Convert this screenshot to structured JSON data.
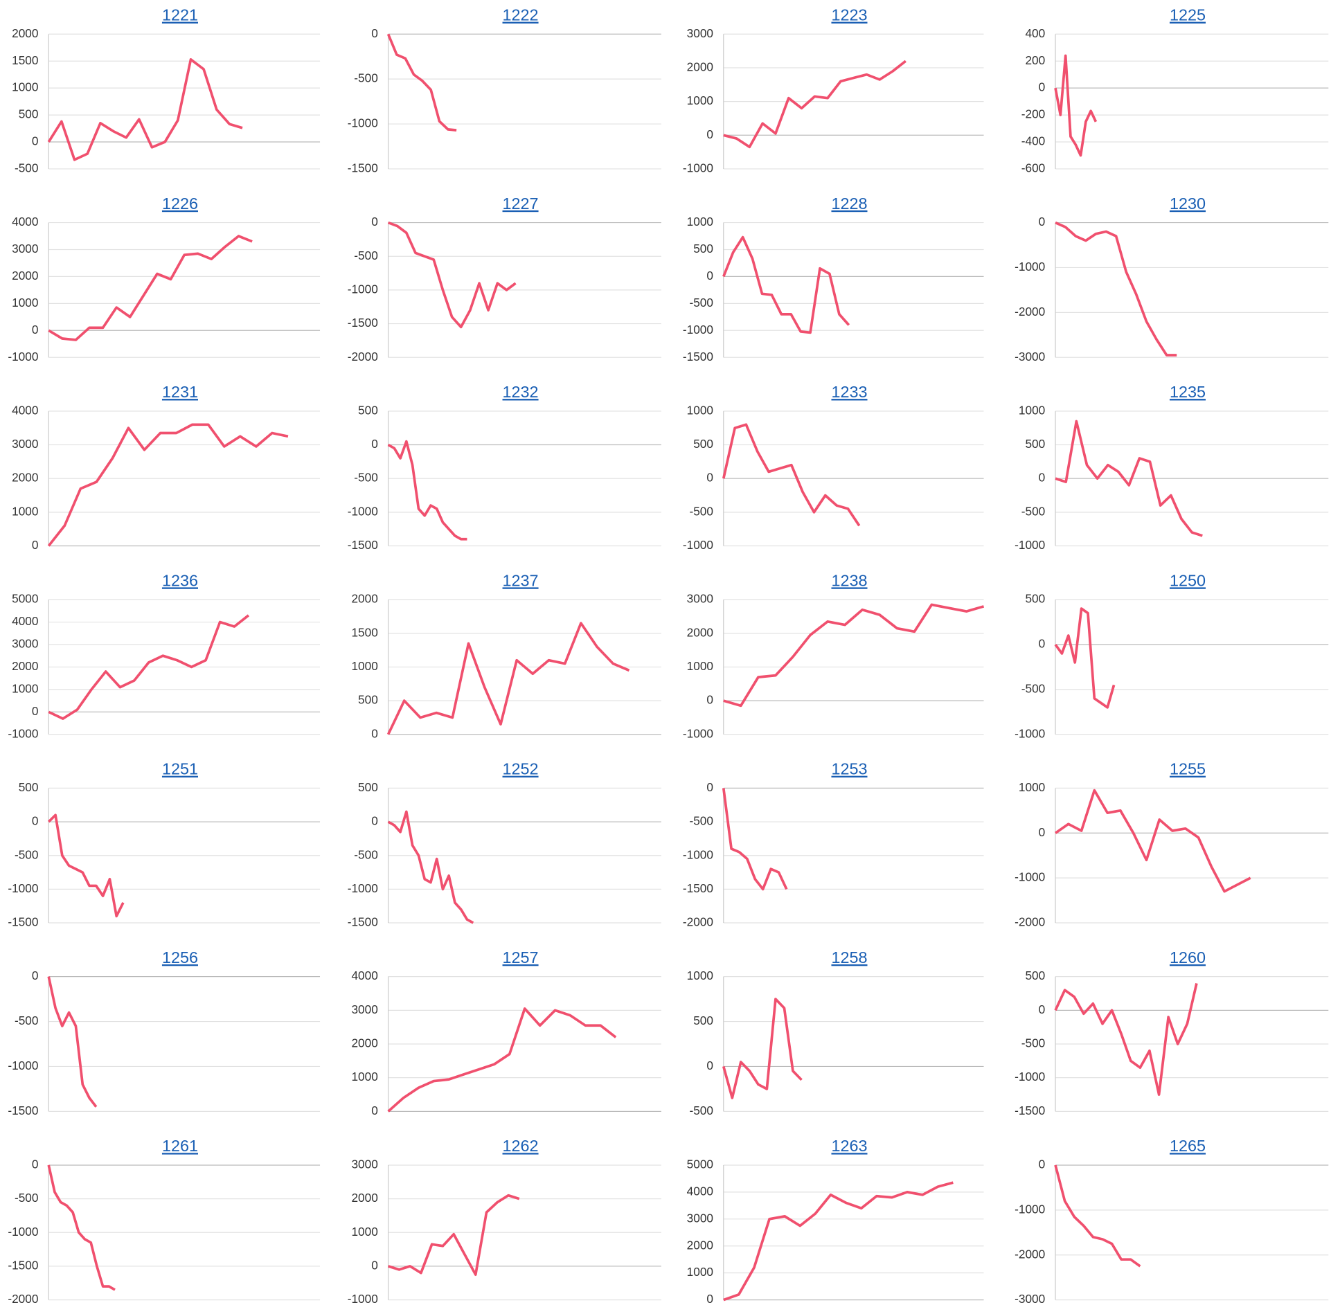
{
  "chart_data": [
    {
      "type": "line",
      "title": "1221",
      "color": "#f0506e",
      "ylim": [
        -500,
        2000
      ],
      "yticks": [
        -500,
        0,
        500,
        1000,
        1500,
        2000
      ],
      "values": [
        0,
        380,
        -330,
        -220,
        350,
        200,
        80,
        420,
        -100,
        0,
        400,
        1530,
        1350,
        600,
        330,
        260
      ]
    },
    {
      "type": "line",
      "title": "1222",
      "color": "#f0506e",
      "ylim": [
        -1500,
        0
      ],
      "yticks": [
        -1500,
        -1000,
        -500,
        0
      ],
      "values": [
        0,
        -230,
        -270,
        -450,
        -520,
        -620,
        -970,
        -1060,
        -1070
      ]
    },
    {
      "type": "line",
      "title": "1223",
      "color": "#f0506e",
      "ylim": [
        -1000,
        3000
      ],
      "yticks": [
        -1000,
        0,
        1000,
        2000,
        3000
      ],
      "values": [
        0,
        -100,
        -350,
        350,
        50,
        1100,
        800,
        1150,
        1100,
        1600,
        1700,
        1800,
        1650,
        1900,
        2200
      ]
    },
    {
      "type": "line",
      "title": "1225",
      "color": "#f0506e",
      "ylim": [
        -600,
        400
      ],
      "yticks": [
        -600,
        -400,
        -200,
        0,
        200,
        400
      ],
      "values": [
        0,
        -200,
        240,
        -360,
        -420,
        -500,
        -250,
        -170,
        -250
      ]
    },
    {
      "type": "line",
      "title": "1226",
      "color": "#f0506e",
      "ylim": [
        -1000,
        4000
      ],
      "yticks": [
        -1000,
        0,
        1000,
        2000,
        3000,
        4000
      ],
      "values": [
        0,
        -300,
        -350,
        100,
        100,
        850,
        500,
        1300,
        2100,
        1900,
        2800,
        2850,
        2650,
        3100,
        3500,
        3300
      ]
    },
    {
      "type": "line",
      "title": "1227",
      "color": "#f0506e",
      "ylim": [
        -2000,
        0
      ],
      "yticks": [
        -2000,
        -1500,
        -1000,
        -500,
        0
      ],
      "values": [
        0,
        -50,
        -150,
        -450,
        -500,
        -550,
        -1000,
        -1400,
        -1550,
        -1300,
        -900,
        -1300,
        -900,
        -1000,
        -900
      ]
    },
    {
      "type": "line",
      "title": "1228",
      "color": "#f0506e",
      "ylim": [
        -1500,
        1000
      ],
      "yticks": [
        -1500,
        -1000,
        -500,
        0,
        500,
        1000
      ],
      "values": [
        0,
        450,
        730,
        330,
        -320,
        -340,
        -700,
        -700,
        -1020,
        -1040,
        150,
        50,
        -700,
        -900
      ]
    },
    {
      "type": "line",
      "title": "1230",
      "color": "#f0506e",
      "ylim": [
        -3000,
        0
      ],
      "yticks": [
        -3000,
        -2000,
        -1000,
        0
      ],
      "values": [
        0,
        -100,
        -300,
        -400,
        -250,
        -200,
        -300,
        -1100,
        -1600,
        -2200,
        -2600,
        -2950,
        -2950
      ]
    },
    {
      "type": "line",
      "title": "1231",
      "color": "#f0506e",
      "ylim": [
        0,
        4000
      ],
      "yticks": [
        0,
        1000,
        2000,
        3000,
        4000
      ],
      "values": [
        0,
        600,
        1700,
        1900,
        2600,
        3500,
        2850,
        3350,
        3350,
        3600,
        3600,
        2950,
        3250,
        2950,
        3350,
        3250
      ]
    },
    {
      "type": "line",
      "title": "1232",
      "color": "#f0506e",
      "ylim": [
        -1500,
        500
      ],
      "yticks": [
        -1500,
        -1000,
        -500,
        0,
        500
      ],
      "values": [
        0,
        -50,
        -200,
        50,
        -300,
        -950,
        -1050,
        -900,
        -950,
        -1150,
        -1250,
        -1350,
        -1400,
        -1400
      ]
    },
    {
      "type": "line",
      "title": "1233",
      "color": "#f0506e",
      "ylim": [
        -1000,
        1000
      ],
      "yticks": [
        -1000,
        -500,
        0,
        500,
        1000
      ],
      "values": [
        0,
        750,
        800,
        400,
        100,
        150,
        200,
        -200,
        -500,
        -250,
        -400,
        -450,
        -700
      ]
    },
    {
      "type": "line",
      "title": "1235",
      "color": "#f0506e",
      "ylim": [
        -1000,
        1000
      ],
      "yticks": [
        -1000,
        -500,
        0,
        500,
        1000
      ],
      "values": [
        0,
        -50,
        850,
        200,
        0,
        200,
        100,
        -100,
        300,
        250,
        -400,
        -250,
        -600,
        -800,
        -850
      ]
    },
    {
      "type": "line",
      "title": "1236",
      "color": "#f0506e",
      "ylim": [
        -1000,
        5000
      ],
      "yticks": [
        -1000,
        0,
        1000,
        2000,
        3000,
        4000,
        5000
      ],
      "values": [
        0,
        -300,
        100,
        1000,
        1800,
        1100,
        1400,
        2200,
        2500,
        2300,
        2000,
        2300,
        4000,
        3800,
        4300
      ]
    },
    {
      "type": "line",
      "title": "1237",
      "color": "#f0506e",
      "ylim": [
        0,
        2000
      ],
      "yticks": [
        0,
        500,
        1000,
        1500,
        2000
      ],
      "values": [
        0,
        500,
        250,
        320,
        250,
        1350,
        700,
        150,
        1100,
        900,
        1100,
        1050,
        1650,
        1300,
        1050,
        950
      ]
    },
    {
      "type": "line",
      "title": "1238",
      "color": "#f0506e",
      "ylim": [
        -1000,
        3000
      ],
      "yticks": [
        -1000,
        0,
        1000,
        2000,
        3000
      ],
      "values": [
        0,
        -150,
        700,
        750,
        1300,
        1950,
        2350,
        2250,
        2700,
        2550,
        2150,
        2050,
        2850,
        2750,
        2650,
        2800
      ]
    },
    {
      "type": "line",
      "title": "1250",
      "color": "#f0506e",
      "ylim": [
        -1000,
        500
      ],
      "yticks": [
        -1000,
        -500,
        0,
        500
      ],
      "values": [
        0,
        -100,
        100,
        -200,
        400,
        350,
        -600,
        -650,
        -700,
        -450
      ]
    },
    {
      "type": "line",
      "title": "1251",
      "color": "#f0506e",
      "ylim": [
        -1500,
        500
      ],
      "yticks": [
        -1500,
        -1000,
        -500,
        0,
        500
      ],
      "values": [
        0,
        100,
        -500,
        -650,
        -700,
        -750,
        -950,
        -950,
        -1100,
        -850,
        -1400,
        -1200
      ]
    },
    {
      "type": "line",
      "title": "1252",
      "color": "#f0506e",
      "ylim": [
        -1500,
        500
      ],
      "yticks": [
        -1500,
        -1000,
        -500,
        0,
        500
      ],
      "values": [
        0,
        -50,
        -150,
        150,
        -350,
        -500,
        -850,
        -900,
        -550,
        -1000,
        -800,
        -1200,
        -1300,
        -1450,
        -1500
      ]
    },
    {
      "type": "line",
      "title": "1253",
      "color": "#f0506e",
      "ylim": [
        -2000,
        0
      ],
      "yticks": [
        -2000,
        -1500,
        -1000,
        -500,
        0
      ],
      "values": [
        0,
        -900,
        -950,
        -1050,
        -1350,
        -1500,
        -1200,
        -1250,
        -1500
      ]
    },
    {
      "type": "line",
      "title": "1255",
      "color": "#f0506e",
      "ylim": [
        -2000,
        1000
      ],
      "yticks": [
        -2000,
        -1000,
        0,
        1000
      ],
      "values": [
        0,
        200,
        50,
        950,
        450,
        500,
        0,
        -600,
        300,
        50,
        100,
        -100,
        -750,
        -1300,
        -1150,
        -1000
      ]
    },
    {
      "type": "line",
      "title": "1256",
      "color": "#f0506e",
      "ylim": [
        -1500,
        0
      ],
      "yticks": [
        -1500,
        -1000,
        -500,
        0
      ],
      "values": [
        0,
        -350,
        -550,
        -400,
        -550,
        -1200,
        -1350,
        -1450
      ]
    },
    {
      "type": "line",
      "title": "1257",
      "color": "#f0506e",
      "ylim": [
        0,
        4000
      ],
      "yticks": [
        0,
        1000,
        2000,
        3000,
        4000
      ],
      "values": [
        0,
        400,
        700,
        900,
        950,
        1100,
        1250,
        1400,
        1700,
        3050,
        2550,
        3000,
        2850,
        2550,
        2550,
        2200
      ]
    },
    {
      "type": "line",
      "title": "1258",
      "color": "#f0506e",
      "ylim": [
        -500,
        1000
      ],
      "yticks": [
        -500,
        0,
        500,
        1000
      ],
      "values": [
        0,
        -350,
        50,
        -50,
        -200,
        -250,
        750,
        650,
        -50,
        -150
      ]
    },
    {
      "type": "line",
      "title": "1260",
      "color": "#f0506e",
      "ylim": [
        -1500,
        500
      ],
      "yticks": [
        -1500,
        -1000,
        -500,
        0,
        500
      ],
      "values": [
        0,
        300,
        200,
        -50,
        100,
        -200,
        0,
        -350,
        -750,
        -850,
        -600,
        -1250,
        -100,
        -500,
        -200,
        400
      ]
    },
    {
      "type": "line",
      "title": "1261",
      "color": "#f0506e",
      "ylim": [
        -2000,
        0
      ],
      "yticks": [
        -2000,
        -1500,
        -1000,
        -500,
        0
      ],
      "values": [
        0,
        -400,
        -550,
        -600,
        -700,
        -1000,
        -1100,
        -1150,
        -1500,
        -1800,
        -1800,
        -1850
      ]
    },
    {
      "type": "line",
      "title": "1262",
      "color": "#f0506e",
      "ylim": [
        -1000,
        3000
      ],
      "yticks": [
        -1000,
        0,
        1000,
        2000,
        3000
      ],
      "values": [
        0,
        -100,
        0,
        -200,
        650,
        600,
        950,
        350,
        -250,
        1600,
        1900,
        2100,
        2000
      ]
    },
    {
      "type": "line",
      "title": "1263",
      "color": "#f0506e",
      "ylim": [
        0,
        5000
      ],
      "yticks": [
        0,
        1000,
        2000,
        3000,
        4000,
        5000
      ],
      "values": [
        0,
        200,
        1200,
        3000,
        3100,
        2750,
        3200,
        3900,
        3600,
        3400,
        3850,
        3800,
        4000,
        3900,
        4200,
        4350
      ]
    },
    {
      "type": "line",
      "title": "1265",
      "color": "#f0506e",
      "ylim": [
        -3000,
        0
      ],
      "yticks": [
        -3000,
        -2000,
        -1000,
        0
      ],
      "values": [
        0,
        -800,
        -1150,
        -1350,
        -1600,
        -1650,
        -1750,
        -2100,
        -2100,
        -2250
      ]
    }
  ]
}
